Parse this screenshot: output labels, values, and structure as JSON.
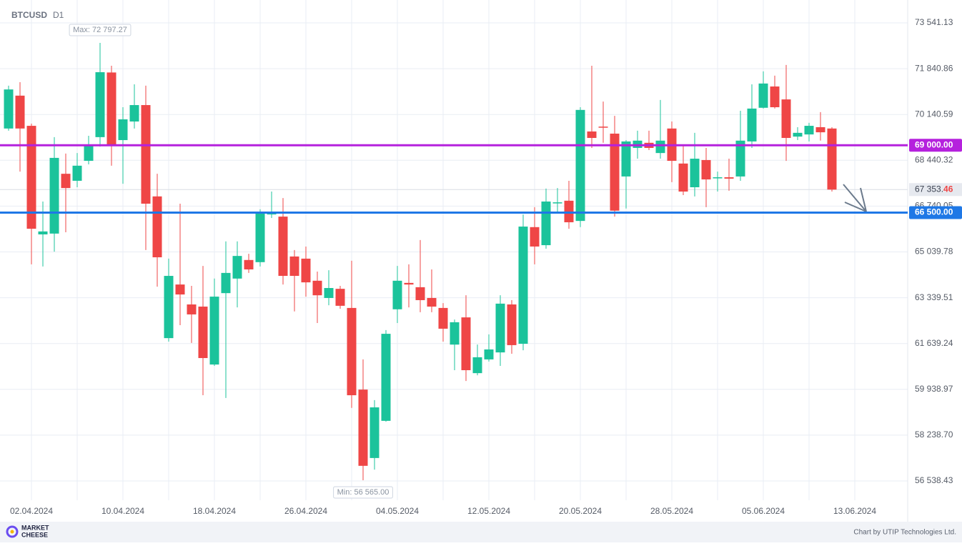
{
  "chart_data": {
    "type": "candlestick",
    "symbol": "BTCUSD",
    "timeframe": "D1",
    "categories": [
      null,
      null,
      "02.04.2024",
      null,
      null,
      null,
      null,
      null,
      null,
      null,
      "10.04.2024",
      null,
      null,
      null,
      null,
      null,
      null,
      null,
      "18.04.2024",
      null,
      null,
      null,
      null,
      null,
      null,
      null,
      "26.04.2024",
      null,
      null,
      null,
      null,
      null,
      null,
      null,
      "04.05.2024",
      null,
      null,
      null,
      null,
      null,
      null,
      null,
      "12.05.2024",
      null,
      null,
      null,
      null,
      null,
      null,
      null,
      "20.05.2024",
      null,
      null,
      null,
      null,
      null,
      null,
      null,
      "28.05.2024",
      null,
      null,
      null,
      null,
      null,
      null,
      null,
      "05.06.2024",
      null,
      null,
      null,
      null,
      null,
      null,
      null,
      "13.06.2024"
    ],
    "open": [
      69620,
      70840,
      69720,
      65690,
      65720,
      67940,
      67680,
      68420,
      69300,
      71700,
      69190,
      69880,
      70490,
      67100,
      61840,
      63830,
      63090,
      63010,
      60860,
      63510,
      64050,
      64740,
      64660,
      66430,
      66350,
      64870,
      64790,
      63970,
      63330,
      63670,
      62960,
      59930,
      57390,
      58770,
      62910,
      63890,
      63730,
      63330,
      62960,
      61600,
      62610,
      60540,
      61050,
      61310,
      63090,
      61630,
      65960,
      65290,
      66860,
      66940,
      66190,
      69510,
      69690,
      69430,
      67840,
      68900,
      69090,
      68710,
      69620,
      68320,
      67440,
      68450,
      67790,
      67810,
      67840,
      69140,
      70390,
      71180,
      70700,
      69320,
      69400,
      69670,
      69620,
      null,
      null
    ],
    "high": [
      71210,
      71340,
      69800,
      66910,
      69300,
      68690,
      68710,
      69350,
      72797.27,
      71950,
      70410,
      71260,
      71210,
      67940,
      64790,
      66830,
      63780,
      64520,
      64050,
      65430,
      65430,
      64970,
      66620,
      67280,
      67040,
      65110,
      65240,
      64310,
      64360,
      63780,
      64710,
      61050,
      59540,
      62140,
      64520,
      64580,
      65480,
      64390,
      63140,
      62530,
      63430,
      61600,
      61980,
      63430,
      63250,
      66430,
      66700,
      67390,
      67410,
      67680,
      70410,
      71950,
      70620,
      70090,
      69190,
      69540,
      69540,
      70680,
      69880,
      68980,
      69460,
      68900,
      68020,
      68500,
      70280,
      71260,
      71740,
      71580,
      71980,
      69670,
      69830,
      70230,
      69670,
      null,
      null
    ],
    "low": [
      69540,
      68020,
      64580,
      64500,
      65050,
      65770,
      67440,
      68290,
      68950,
      68240,
      67570,
      69620,
      65110,
      63750,
      61710,
      62320,
      61660,
      59720,
      60810,
      59620,
      62980,
      64260,
      64500,
      66300,
      63830,
      62830,
      63380,
      62400,
      63060,
      62930,
      59250,
      56565,
      56960,
      58740,
      62400,
      62980,
      62800,
      62800,
      61710,
      60650,
      60250,
      60460,
      60970,
      60810,
      61260,
      61390,
      64580,
      65160,
      66510,
      65900,
      65960,
      68900,
      69090,
      66350,
      66650,
      68500,
      68820,
      68500,
      67630,
      67150,
      67100,
      66700,
      67280,
      67310,
      67680,
      68900,
      70360,
      70360,
      68420,
      69190,
      69140,
      69170,
      67280,
      null,
      null
    ],
    "close": [
      71070,
      69620,
      65900,
      65800,
      68530,
      67410,
      68240,
      68980,
      71710,
      69030,
      69960,
      70490,
      66830,
      64840,
      64150,
      63460,
      62720,
      61100,
      63380,
      64260,
      64890,
      64390,
      66510,
      66510,
      64150,
      64150,
      63910,
      63430,
      63700,
      63040,
      59720,
      57100,
      59270,
      62000,
      63970,
      63830,
      63250,
      63010,
      62190,
      62430,
      60650,
      61130,
      61420,
      63120,
      61580,
      65980,
      65240,
      66910,
      66880,
      66140,
      70310,
      69270,
      69670,
      66570,
      69140,
      69170,
      68900,
      69170,
      68420,
      67280,
      68500,
      67730,
      67810,
      67760,
      69170,
      70360,
      71290,
      70410,
      69270,
      69460,
      69720,
      69480,
      67353.46,
      null,
      null
    ],
    "up_color": "#1bc39b",
    "down_color": "#ef4646",
    "ylim": [
      55822,
      74390
    ],
    "yticks": [
      {
        "value": 56538.43,
        "label": "56 538.43"
      },
      {
        "value": 58238.7,
        "label": "58 238.70"
      },
      {
        "value": 59938.97,
        "label": "59 938.97"
      },
      {
        "value": 61639.24,
        "label": "61 639.24"
      },
      {
        "value": 63339.51,
        "label": "63 339.51"
      },
      {
        "value": 65039.78,
        "label": "65 039.78"
      },
      {
        "value": 66740.05,
        "label": "66 740.05"
      },
      {
        "value": 68440.32,
        "label": "68 440.32"
      },
      {
        "value": 70140.59,
        "label": "70 140.59"
      },
      {
        "value": 71840.86,
        "label": "71 840.86"
      },
      {
        "value": 73541.13,
        "label": "73 541.13"
      }
    ],
    "grid": true,
    "levels": [
      {
        "value": 69000.0,
        "label": "69 000.00",
        "color": "#b521dd"
      },
      {
        "value": 66500.0,
        "label": "66 500.00",
        "color": "#1f78e6"
      }
    ],
    "current_price": {
      "value": 67353.46,
      "label": "67 353.46"
    },
    "max_annotation": {
      "value": 72797.27,
      "label": "Max: 72 797.27"
    },
    "min_annotation": {
      "value": 56565.0,
      "label": "Min: 56 565.00"
    }
  },
  "footer": {
    "brand": [
      "MARKET",
      "CHEESE"
    ],
    "credit": "Chart by UTIP Technologies Ltd."
  }
}
